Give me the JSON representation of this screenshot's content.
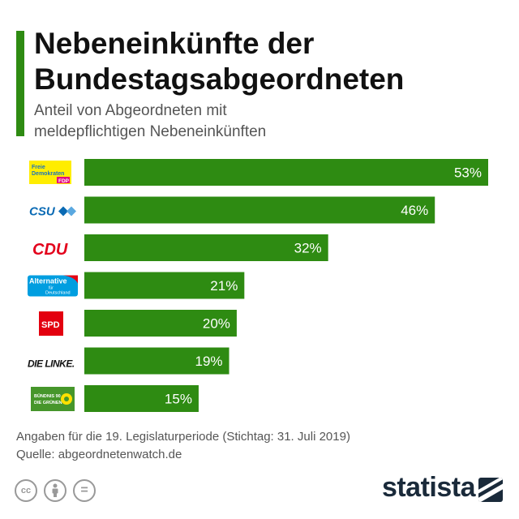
{
  "header": {
    "title_line1": "Nebeneinkünfte der",
    "title_line2": "Bundestagsabgeordneten",
    "subtitle_line1": "Anteil von Abgeordneten mit",
    "subtitle_line2": "meldepflichtigen Nebeneinkünften"
  },
  "colors": {
    "accent": "#2e8b12",
    "bar": "#2e8b12",
    "text": "#222222",
    "brand": "#1a2a3a"
  },
  "chart_data": {
    "type": "bar",
    "orientation": "horizontal",
    "categories": [
      "FDP",
      "CSU",
      "CDU",
      "AfD",
      "SPD",
      "DIE LINKE.",
      "Bündnis 90/Die Grünen"
    ],
    "values": [
      53,
      46,
      32,
      21,
      20,
      19,
      15
    ],
    "value_labels": [
      "53%",
      "46%",
      "32%",
      "21%",
      "20%",
      "19%",
      "15%"
    ],
    "xlim": [
      0,
      53
    ],
    "grid": false,
    "legend": "none",
    "logos": [
      {
        "icon": "fdp-logo",
        "lines": [
          "Freie",
          "Demokraten",
          "FDP"
        ]
      },
      {
        "icon": "csu-logo",
        "lines": [
          "CSU"
        ]
      },
      {
        "icon": "cdu-logo",
        "lines": [
          "CDU"
        ]
      },
      {
        "icon": "afd-logo",
        "lines": [
          "Alternative",
          "für",
          "Deutschland"
        ]
      },
      {
        "icon": "spd-logo",
        "lines": [
          "SPD"
        ]
      },
      {
        "icon": "linke-logo",
        "lines": [
          "DIE LINKE."
        ]
      },
      {
        "icon": "gruene-logo",
        "lines": [
          "BÜNDNIS 90",
          "DIE GRÜNEN"
        ]
      }
    ]
  },
  "footer": {
    "note": "Angaben für die 19. Legislaturperiode (Stichtag: 31. Juli 2019)",
    "source": "Quelle: abgeordnetenwatch.de",
    "cc_icons": [
      "cc-icon",
      "by-person-icon",
      "nd-equals-icon"
    ],
    "cc_text": "cc",
    "nd_text": "=",
    "brand": "statista"
  }
}
